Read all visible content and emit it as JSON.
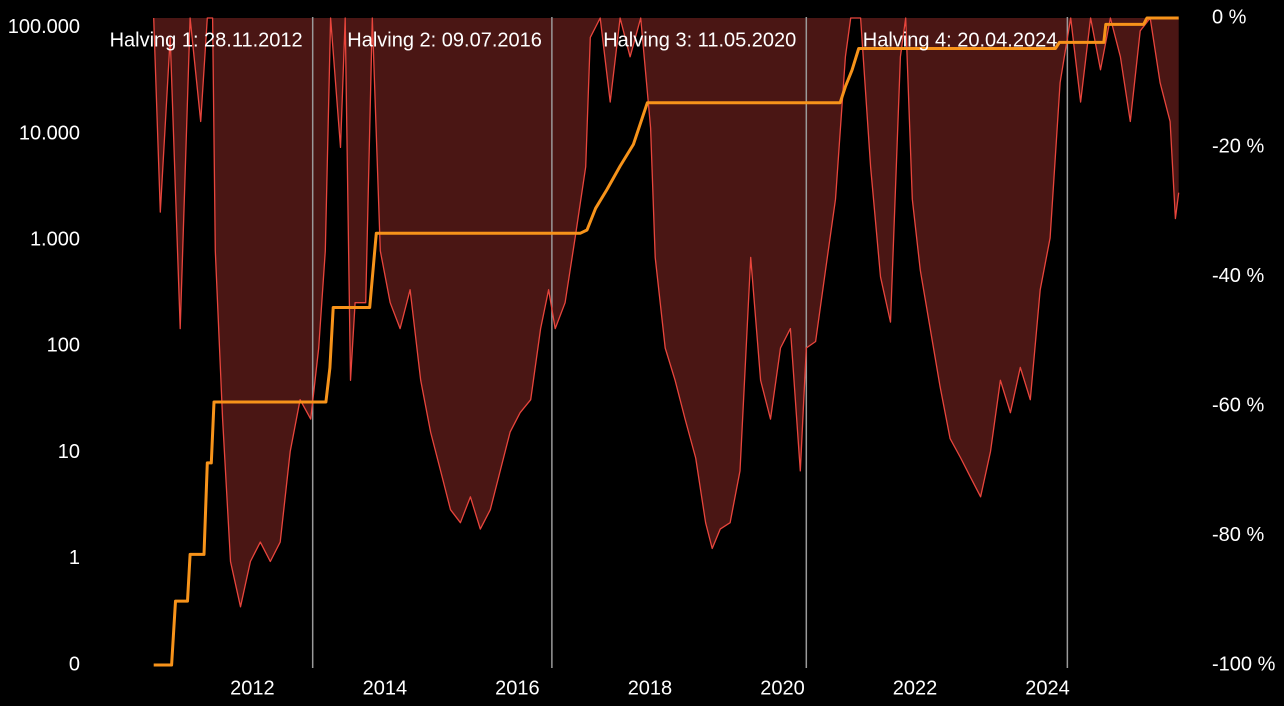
{
  "chart_data": {
    "type": "line",
    "xlim": [
      2009.7,
      2026.0
    ],
    "xticks": [
      2012,
      2014,
      2016,
      2018,
      2020,
      2022,
      2024
    ],
    "ylim": [
      0.1,
      124000
    ],
    "log_scale": true,
    "yticks": [
      {
        "value": 0.1,
        "label": "0"
      },
      1,
      10,
      100,
      {
        "value": 1000,
        "label": "1.000"
      },
      {
        "value": 10000,
        "label": "10.000"
      },
      {
        "value": 100000,
        "label": "100.000"
      }
    ],
    "y2lim": [
      -100,
      0
    ],
    "y2ticks": [
      {
        "value": -100,
        "label": "-100 %"
      },
      {
        "value": -80,
        "label": "-80 %"
      },
      {
        "value": -60,
        "label": "-60 %"
      },
      {
        "value": -40,
        "label": "-40 %"
      },
      {
        "value": -20,
        "label": "-20 %"
      },
      {
        "value": 0,
        "label": "0 %"
      }
    ],
    "annotations": [
      {
        "label": "Halving 1: 28.11.2012",
        "x": 2012.91
      },
      {
        "label": "Halving 2: 09.07.2016",
        "x": 2016.52
      },
      {
        "label": "Halving 3: 11.05.2020",
        "x": 2020.36
      },
      {
        "label": "Halving 4: 20.04.2024",
        "x": 2024.3
      }
    ],
    "series": [
      {
        "color": "#e8453c",
        "fill": "#4a1614",
        "axis": "y2",
        "x": [
          2010.51,
          2010.61,
          2010.76,
          2010.91,
          2011.06,
          2011.22,
          2011.32,
          2011.4,
          2011.44,
          2011.55,
          2011.67,
          2011.82,
          2011.97,
          2012.12,
          2012.27,
          2012.42,
          2012.57,
          2012.72,
          2012.88,
          2013.0,
          2013.1,
          2013.18,
          2013.33,
          2013.4,
          2013.48,
          2013.55,
          2013.71,
          2013.81,
          2013.93,
          2014.08,
          2014.23,
          2014.38,
          2014.54,
          2014.69,
          2014.84,
          2014.99,
          2015.14,
          2015.29,
          2015.44,
          2015.59,
          2015.74,
          2015.89,
          2016.04,
          2016.2,
          2016.35,
          2016.47,
          2016.57,
          2016.72,
          2016.87,
          2017.03,
          2017.1,
          2017.25,
          2017.4,
          2017.55,
          2017.7,
          2017.86,
          2018.01,
          2018.08,
          2018.23,
          2018.38,
          2018.53,
          2018.69,
          2018.84,
          2018.94,
          2019.06,
          2019.21,
          2019.36,
          2019.52,
          2019.67,
          2019.82,
          2019.97,
          2020.12,
          2020.27,
          2020.36,
          2020.5,
          2020.65,
          2020.8,
          2020.95,
          2021.03,
          2021.18,
          2021.33,
          2021.48,
          2021.63,
          2021.78,
          2021.86,
          2021.96,
          2022.08,
          2022.23,
          2022.38,
          2022.53,
          2022.69,
          2022.84,
          2022.99,
          2023.14,
          2023.29,
          2023.44,
          2023.59,
          2023.74,
          2023.89,
          2024.04,
          2024.19,
          2024.35,
          2024.5,
          2024.65,
          2024.8,
          2024.95,
          2025.1,
          2025.25,
          2025.4,
          2025.55,
          2025.7,
          2025.85,
          2025.93,
          2025.98
        ],
        "values": [
          0,
          -30,
          -3,
          -48,
          0,
          -16,
          0,
          0,
          -36,
          -62,
          -84,
          -91,
          -84,
          -81,
          -84,
          -81,
          -67,
          -59,
          -62,
          -51,
          -36,
          0,
          -20,
          0,
          -56,
          -44,
          -44,
          0,
          -36,
          -44,
          -48,
          -42,
          -56,
          -64,
          -70,
          -76,
          -78,
          -74,
          -79,
          -76,
          -70,
          -64,
          -61,
          -59,
          -48,
          -42,
          -48,
          -44,
          -34,
          -23,
          -3,
          0,
          -13,
          0,
          -6,
          0,
          -17,
          -37,
          -51,
          -56,
          -62,
          -68,
          -78,
          -82,
          -79,
          -78,
          -70,
          -37,
          -56,
          -62,
          -51,
          -48,
          -70,
          -51,
          -50,
          -39,
          -28,
          -6,
          0,
          0,
          -23,
          -40,
          -47,
          -6,
          0,
          -28,
          -39,
          -48,
          -57,
          -65,
          -68,
          -71,
          -74,
          -67,
          -56,
          -61,
          -54,
          -59,
          -42,
          -34,
          -10,
          0,
          -13,
          0,
          -8,
          0,
          -6,
          -16,
          -2,
          0,
          -10,
          -16,
          -31,
          -27
        ]
      },
      {
        "color": "#f7931a",
        "axis": "y",
        "x": [
          2010.51,
          2010.78,
          2010.84,
          2011.02,
          2011.06,
          2011.27,
          2011.32,
          2011.38,
          2011.42,
          2013.11,
          2013.17,
          2013.22,
          2013.77,
          2013.87,
          2016.95,
          2017.05,
          2017.18,
          2017.35,
          2017.55,
          2017.75,
          2017.96,
          2020.87,
          2020.95,
          2021.05,
          2021.15,
          2024.12,
          2024.18,
          2024.85,
          2024.88,
          2025.45,
          2025.5,
          2025.98
        ],
        "values": [
          0.1,
          0.1,
          0.4,
          0.4,
          1.1,
          1.1,
          8,
          8,
          30,
          30,
          63,
          233,
          233,
          1165,
          1165,
          1250,
          2000,
          3000,
          5000,
          8000,
          19700,
          19700,
          28000,
          40000,
          64000,
          64000,
          73000,
          73000,
          108000,
          108000,
          124000,
          124000
        ]
      }
    ]
  }
}
